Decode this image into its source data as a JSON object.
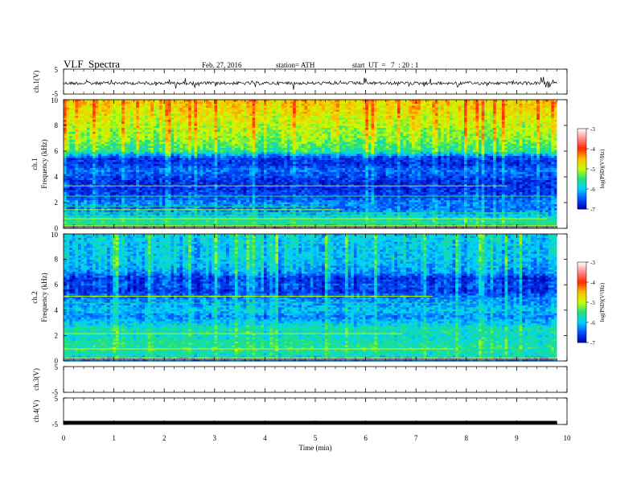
{
  "header": {
    "title": "VLF  Spectra",
    "date": "Feb. 27, 2016",
    "station": "station= ATH",
    "start": "start  UT  =   7  : 20 : 1"
  },
  "chart_data": {
    "type": "heatmap",
    "x_axis": {
      "label": "Time  (min)",
      "range": [
        0,
        10
      ],
      "ticks": [
        "0",
        "1",
        "2",
        "3",
        "4",
        "5",
        "6",
        "7",
        "8",
        "9",
        "10"
      ],
      "data_end": 9.8
    },
    "panels": [
      {
        "id": "ch1_waveform",
        "type": "line",
        "ylabel": "ch.1(V)",
        "yticks": [
          "5",
          "-5"
        ],
        "ylim": [
          -5,
          5
        ]
      },
      {
        "id": "ch1_spectrogram",
        "type": "heatmap",
        "ylabel_top": "ch.1",
        "ylabel": "Frequency  (kHz)",
        "yticks": [
          "0",
          "2",
          "4",
          "6",
          "8",
          "10"
        ],
        "ylim": [
          0,
          10
        ],
        "profile": [
          {
            "f": 0.0,
            "v": -6.2
          },
          {
            "f": 0.5,
            "v": -5.6
          },
          {
            "f": 1.0,
            "v": -6.0
          },
          {
            "f": 1.5,
            "v": -6.4
          },
          {
            "f": 2.0,
            "v": -6.3
          },
          {
            "f": 2.5,
            "v": -6.6
          },
          {
            "f": 3.0,
            "v": -6.7
          },
          {
            "f": 3.5,
            "v": -6.75
          },
          {
            "f": 4.0,
            "v": -6.6
          },
          {
            "f": 4.5,
            "v": -6.4
          },
          {
            "f": 5.0,
            "v": -6.7
          },
          {
            "f": 5.5,
            "v": -6.6
          },
          {
            "f": 6.0,
            "v": -5.6
          },
          {
            "f": 7.0,
            "v": -5.2
          },
          {
            "f": 8.0,
            "v": -5.0
          },
          {
            "f": 9.0,
            "v": -4.8
          },
          {
            "f": 10.0,
            "v": -4.6
          }
        ],
        "colorbar": {
          "label": "log(PSD)(V²/Hz)",
          "ticks": [
            "-3",
            "-4",
            "-5",
            "-6",
            "-7"
          ],
          "range": [
            -7,
            -3
          ]
        }
      },
      {
        "id": "ch2_spectrogram",
        "type": "heatmap",
        "ylabel_top": "ch.2",
        "ylabel": "Frequency  (kHz)",
        "yticks": [
          "0",
          "2",
          "4",
          "6",
          "8",
          "10"
        ],
        "ylim": [
          0,
          10
        ],
        "profile": [
          {
            "f": 0.0,
            "v": -6.3
          },
          {
            "f": 0.5,
            "v": -5.8
          },
          {
            "f": 1.0,
            "v": -5.6
          },
          {
            "f": 1.5,
            "v": -5.7
          },
          {
            "f": 2.0,
            "v": -5.8
          },
          {
            "f": 2.5,
            "v": -5.7
          },
          {
            "f": 3.0,
            "v": -6.0
          },
          {
            "f": 3.5,
            "v": -6.3
          },
          {
            "f": 4.0,
            "v": -6.0
          },
          {
            "f": 4.5,
            "v": -6.2
          },
          {
            "f": 5.0,
            "v": -6.3
          },
          {
            "f": 5.5,
            "v": -6.7
          },
          {
            "f": 6.0,
            "v": -6.5
          },
          {
            "f": 6.5,
            "v": -6.7
          },
          {
            "f": 7.0,
            "v": -6.2
          },
          {
            "f": 8.0,
            "v": -6.0
          },
          {
            "f": 9.0,
            "v": -6.0
          },
          {
            "f": 10.0,
            "v": -5.9
          }
        ],
        "colorbar": {
          "label": "log(PSD)(V²/Hz)",
          "ticks": [
            "-3",
            "-4",
            "-5",
            "-6",
            "-7"
          ],
          "range": [
            -7,
            -3
          ]
        }
      },
      {
        "id": "ch3_waveform",
        "type": "line",
        "ylabel": "ch.3(V)",
        "yticks": [
          "5",
          "-5"
        ],
        "ylim": [
          -5,
          5
        ]
      },
      {
        "id": "ch4_waveform",
        "type": "line",
        "ylabel": "ch.4(V)",
        "yticks": [
          "5",
          "-5"
        ],
        "ylim": [
          -5,
          5
        ]
      }
    ],
    "colormap": [
      "#0000b4",
      "#0050ff",
      "#00d2ff",
      "#22e07a",
      "#c8ff00",
      "#ffbe00",
      "#ff2800",
      "#ff8c8c",
      "#ffffff"
    ]
  }
}
